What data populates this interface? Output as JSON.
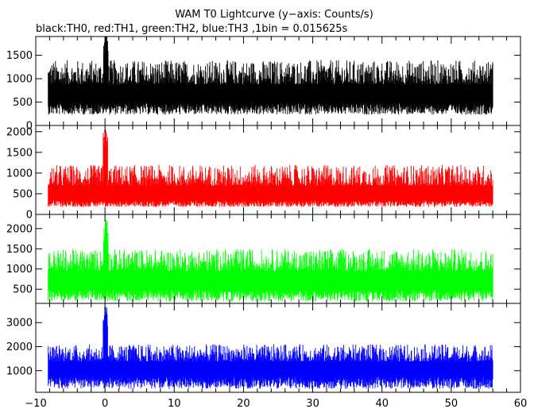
{
  "title": "WAM T0 Lightcurve (y−axis: Counts/s)",
  "subtitle": "black:TH0, red:TH1, green:TH2, blue:TH3 ,1bin = 0.015625s",
  "chart_data": [
    {
      "type": "line",
      "series": [
        {
          "name": "TH0",
          "color": "#000000"
        }
      ],
      "x": {
        "range": [
          -8.2,
          56
        ],
        "bin_s": 0.015625
      },
      "ylim": [
        0,
        1900
      ],
      "yticks": [
        0,
        500,
        1000,
        1500
      ],
      "baseline": 600,
      "scatter_low": 230,
      "scatter_high": 1400,
      "peak": {
        "x": 0.1,
        "value": 1950
      }
    },
    {
      "type": "line",
      "series": [
        {
          "name": "TH1",
          "color": "#ff0000"
        }
      ],
      "ylim": [
        0,
        2150
      ],
      "yticks": [
        0,
        500,
        1000,
        1500,
        2000
      ],
      "baseline": 420,
      "scatter_low": 180,
      "scatter_high": 1200,
      "peak": {
        "x": 0.05,
        "value": 2050
      }
    },
    {
      "type": "line",
      "series": [
        {
          "name": "TH2",
          "color": "#00ff00"
        }
      ],
      "ylim": [
        150,
        2350
      ],
      "yticks": [
        500,
        1000,
        1500,
        2000
      ],
      "baseline": 650,
      "scatter_low": 200,
      "scatter_high": 1500,
      "peak": {
        "x": 0.1,
        "value": 2200
      }
    },
    {
      "type": "line",
      "series": [
        {
          "name": "TH3",
          "color": "#0000ff"
        }
      ],
      "ylim": [
        100,
        3800
      ],
      "yticks": [
        1000,
        2000,
        3000
      ],
      "baseline": 1000,
      "scatter_low": 250,
      "scatter_high": 2100,
      "peak": {
        "x": 0.05,
        "value": 3650
      }
    }
  ],
  "xaxis": {
    "lim": [
      -10,
      60
    ],
    "ticks": [
      -10,
      0,
      10,
      20,
      30,
      40,
      50,
      60
    ],
    "tick_labels": [
      "−10",
      "0",
      "10",
      "20",
      "30",
      "40",
      "50",
      "60"
    ]
  }
}
